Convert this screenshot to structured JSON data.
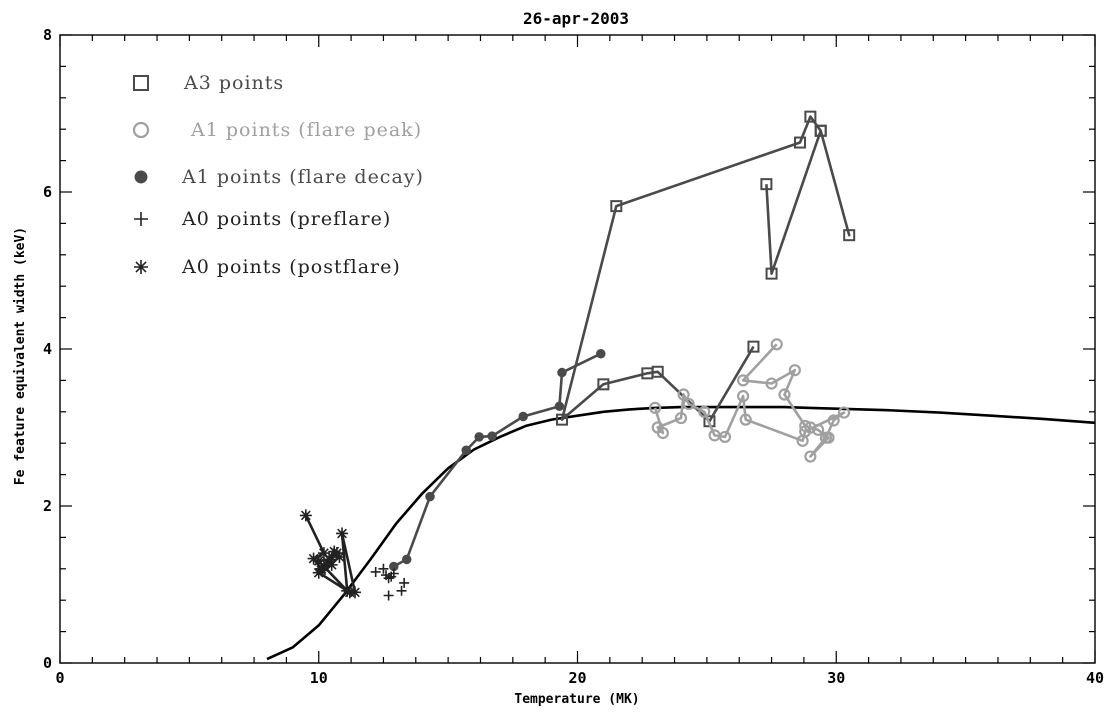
{
  "colors": {
    "a3": "#4a4a4a",
    "a1_peak": "#a0a0a0",
    "a1_decay": "#4a4a4a",
    "a0": "#222222",
    "model": "#000000"
  },
  "chart_data": {
    "type": "scatter",
    "title": "26-apr-2003",
    "xlabel": "Temperature (MK)",
    "ylabel": "Fe feature equivalent width (keV)",
    "xlim": [
      0,
      40
    ],
    "ylim": [
      0,
      8
    ],
    "x_ticks": [
      0,
      10,
      20,
      30,
      40
    ],
    "y_ticks": [
      0,
      2,
      4,
      6,
      8
    ],
    "x_ticks_labels": [
      "0",
      "10",
      "20",
      "30",
      "40"
    ],
    "y_ticks_labels": [
      "0",
      "2",
      "4",
      "6",
      "8"
    ],
    "legend": [
      {
        "label": "A3 points",
        "marker": "square",
        "color": "#4a4a4a"
      },
      {
        "label": " A1 points (flare peak)",
        "marker": "circle",
        "color": "#a0a0a0"
      },
      {
        "label": "A1 points (flare decay)",
        "marker": "filled-circle",
        "color": "#4a4a4a"
      },
      {
        "label": "A0 points (preflare)",
        "marker": "plus",
        "color": "#222222"
      },
      {
        "label": "A0 points (postflare)",
        "marker": "asterisk",
        "color": "#222222"
      }
    ],
    "series": [
      {
        "name": "A3 points",
        "marker": "square",
        "connected": true,
        "x": [
          26.8,
          25.1,
          23.1,
          22.7,
          21.0,
          19.4,
          21.5,
          28.6,
          29.0,
          29.4,
          30.5,
          29.4,
          27.5,
          27.3
        ],
        "y": [
          4.03,
          3.08,
          3.71,
          3.69,
          3.55,
          3.1,
          5.82,
          6.63,
          6.96,
          6.78,
          5.45,
          6.78,
          4.96,
          6.1
        ]
      },
      {
        "name": "A1 points (flare peak)",
        "marker": "circle",
        "connected": true,
        "x": [
          27.7,
          26.4,
          27.5,
          28.4,
          28.0,
          28.8,
          29.0,
          29.3,
          29.7,
          29.0,
          29.6,
          29.9,
          30.3,
          28.8,
          28.7,
          26.5,
          26.4,
          25.7,
          25.3,
          24.9,
          24.3,
          24.1,
          24.0,
          23.1,
          23.3,
          23.0
        ],
        "y": [
          4.06,
          3.6,
          3.56,
          3.73,
          3.42,
          3.02,
          3.0,
          2.97,
          2.87,
          2.63,
          2.87,
          3.09,
          3.19,
          2.95,
          2.83,
          3.1,
          3.4,
          2.88,
          2.9,
          3.2,
          3.3,
          3.42,
          3.12,
          3.0,
          2.93,
          3.25
        ]
      },
      {
        "name": "A1 points (flare decay)",
        "marker": "filled-circle",
        "connected": true,
        "x": [
          20.9,
          19.4,
          19.3,
          17.9,
          16.7,
          16.2,
          15.7,
          14.3,
          13.4,
          12.9
        ],
        "y": [
          3.94,
          3.7,
          3.27,
          3.14,
          2.89,
          2.88,
          2.71,
          2.12,
          1.32,
          1.23
        ]
      },
      {
        "name": "A0 points (preflare)",
        "marker": "plus",
        "connected": false,
        "x": [
          12.2,
          12.5,
          12.6,
          12.7,
          12.8,
          12.9,
          12.7,
          13.2,
          13.3
        ],
        "y": [
          1.16,
          1.2,
          1.12,
          1.08,
          1.1,
          1.14,
          0.86,
          0.92,
          1.02
        ]
      },
      {
        "name": "A0 points (postflare)",
        "marker": "asterisk",
        "connected": true,
        "x": [
          9.5,
          10.2,
          9.8,
          10.1,
          10.6,
          10.8,
          10.1,
          10.5,
          10.0,
          11.2,
          11.4,
          10.9,
          11.1,
          10.0,
          10.4,
          10.2,
          10.7
        ],
        "y": [
          1.88,
          1.4,
          1.33,
          1.2,
          1.42,
          1.35,
          1.18,
          1.25,
          1.15,
          0.9,
          0.9,
          1.65,
          0.92,
          1.3,
          1.32,
          1.22,
          1.4
        ]
      },
      {
        "name": "model curve",
        "marker": "none",
        "connected": true,
        "x": [
          8,
          9,
          10,
          11,
          12,
          13,
          14,
          15,
          16,
          17,
          18,
          19,
          20,
          21,
          22,
          23,
          24,
          25,
          26,
          27,
          28,
          29,
          30,
          32,
          34,
          36,
          38,
          40
        ],
        "y": [
          0.05,
          0.2,
          0.48,
          0.88,
          1.32,
          1.78,
          2.16,
          2.48,
          2.72,
          2.88,
          3.02,
          3.1,
          3.15,
          3.2,
          3.23,
          3.25,
          3.26,
          3.26,
          3.26,
          3.26,
          3.26,
          3.25,
          3.24,
          3.22,
          3.19,
          3.15,
          3.11,
          3.06
        ]
      }
    ]
  }
}
